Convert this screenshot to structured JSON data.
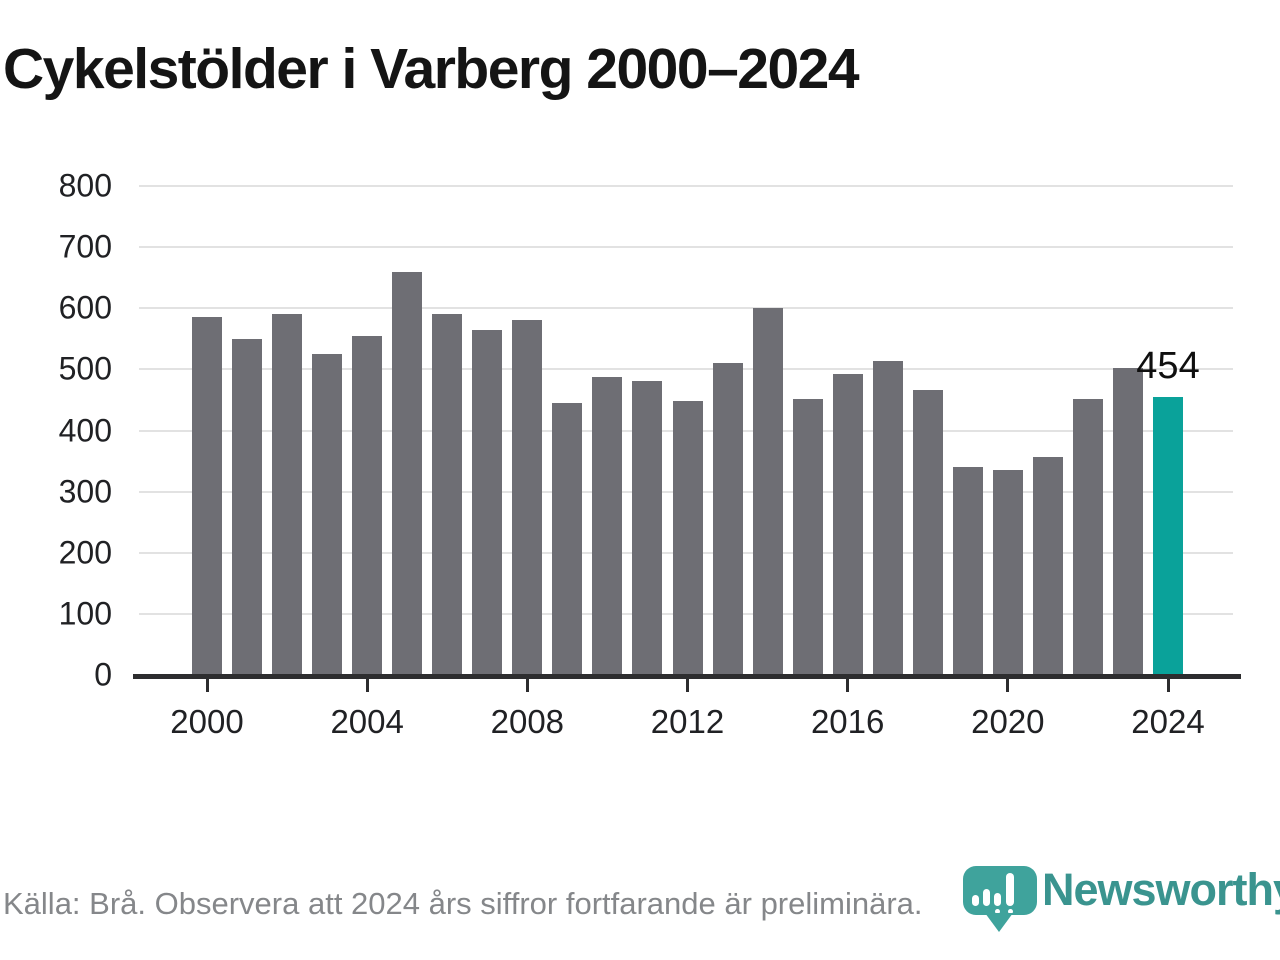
{
  "title": "Cykelstölder i Varberg 2000–2024",
  "footer": {
    "source": "Källa: Brå. Observera att 2024 års siffror fortfarande är preliminära."
  },
  "logo": {
    "brand": "Newsworthy",
    "icon": "newsworthy-pin-barchart-icon"
  },
  "colors": {
    "bar_default": "#6e6e74",
    "bar_highlight": "#0aa29a",
    "grid": "#e2e2e2",
    "axis": "#2d2d2f",
    "title_text": "#141414",
    "tick_text": "#202124",
    "footer_text": "#85878a",
    "logo_pin": "#3fa39c",
    "logo_wordmark": "#3a948f",
    "annotation_text": "#0f0f0f"
  },
  "chart_data": {
    "type": "bar",
    "title": "Cykelstölder i Varberg 2000–2024",
    "xlabel": "",
    "ylabel": "",
    "x": [
      2000,
      2001,
      2002,
      2003,
      2004,
      2005,
      2006,
      2007,
      2008,
      2009,
      2010,
      2011,
      2012,
      2013,
      2014,
      2015,
      2016,
      2017,
      2018,
      2019,
      2020,
      2021,
      2022,
      2023,
      2024
    ],
    "values": [
      585,
      550,
      590,
      525,
      555,
      660,
      590,
      565,
      580,
      445,
      487,
      481,
      448,
      510,
      600,
      451,
      492,
      514,
      466,
      341,
      336,
      357,
      452,
      503,
      454
    ],
    "ylim": [
      0,
      800
    ],
    "y_ticks": [
      0,
      100,
      200,
      300,
      400,
      500,
      600,
      700,
      800
    ],
    "x_ticks": [
      2000,
      2004,
      2008,
      2012,
      2016,
      2020,
      2024
    ],
    "grid": true,
    "legend_position": "none",
    "highlight_x": 2024,
    "highlight_value_label": "454",
    "series_color_default": "#6e6e74",
    "series_color_highlight": "#0aa29a"
  }
}
